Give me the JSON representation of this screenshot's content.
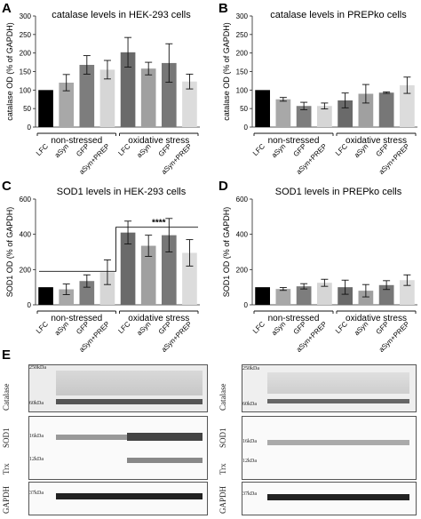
{
  "figure": {
    "panel_labels": [
      "A",
      "B",
      "C",
      "D",
      "E"
    ]
  },
  "colors": {
    "bars": [
      "#000000",
      "#a8a8a8",
      "#7d7d7d",
      "#d6d6d6",
      "#6a6a6a",
      "#a0a0a0",
      "#777777",
      "#dcdcdc"
    ]
  },
  "chart_data": [
    {
      "panel": "A",
      "type": "bar",
      "title": "catalase levels in HEK-293 cells",
      "ylabel": "catalase OD (% of GAPDH)",
      "ylim": [
        0,
        300
      ],
      "yticks": [
        "0",
        "50",
        "100",
        "150",
        "200",
        "250",
        "300"
      ],
      "categories": [
        "LFC",
        "aSyn",
        "GFP",
        "aSyn+PREP",
        "LFC",
        "aSyn",
        "GFP",
        "aSyn+PREP"
      ],
      "values": [
        100,
        120,
        168,
        155,
        202,
        158,
        173,
        123
      ],
      "errors": [
        0,
        22,
        25,
        25,
        40,
        17,
        52,
        20
      ],
      "groups": [
        "non-stressed",
        "oxidative stress"
      ],
      "significance": ""
    },
    {
      "panel": "B",
      "type": "bar",
      "title": "catalase levels in PREPko cells",
      "ylabel": "catalase OD (% of GAPDH)",
      "ylim": [
        0,
        300
      ],
      "yticks": [
        "0",
        "50",
        "100",
        "150",
        "200",
        "250",
        "300"
      ],
      "categories": [
        "LFC",
        "aSyn",
        "GFP",
        "aSyn+PREP",
        "LFC",
        "aSyn",
        "GFP",
        "aSyn+PREP"
      ],
      "values": [
        100,
        75,
        57,
        57,
        72,
        90,
        93,
        113
      ],
      "errors": [
        0,
        5,
        10,
        8,
        20,
        25,
        2,
        22
      ],
      "groups": [
        "non-stressed",
        "oxidative stress"
      ],
      "significance": ""
    },
    {
      "panel": "C",
      "type": "bar",
      "title": "SOD1 levels in HEK-293 cells",
      "ylabel": "SOD1 OD (% of GAPDH)",
      "ylim": [
        0,
        600
      ],
      "yticks": [
        "0",
        "200",
        "400",
        "600"
      ],
      "categories": [
        "LFC",
        "aSyn",
        "GFP",
        "aSyn+PREP",
        "LFC",
        "aSyn",
        "GFP",
        "aSyn+PREP"
      ],
      "values": [
        100,
        88,
        135,
        185,
        410,
        335,
        395,
        295
      ],
      "errors": [
        0,
        30,
        35,
        70,
        65,
        60,
        95,
        75
      ],
      "groups": [
        "non-stressed",
        "oxidative stress"
      ],
      "significance": "****"
    },
    {
      "panel": "D",
      "type": "bar",
      "title": "SOD1 levels in PREPko cells",
      "ylabel": "SOD1 OD (% of GAPDH)",
      "ylim": [
        0,
        600
      ],
      "yticks": [
        "0",
        "200",
        "400",
        "600"
      ],
      "categories": [
        "LFC",
        "aSyn",
        "GFP",
        "aSyn+PREP",
        "LFC",
        "aSyn",
        "GFP",
        "aSyn+PREP"
      ],
      "values": [
        100,
        90,
        105,
        125,
        100,
        80,
        112,
        140
      ],
      "errors": [
        0,
        8,
        15,
        20,
        40,
        35,
        25,
        30
      ],
      "groups": [
        "non-stressed",
        "oxidative stress"
      ],
      "significance": ""
    }
  ],
  "blots": {
    "left": {
      "labels": [
        "Catalase",
        "SOD1",
        "Trx",
        "GAPDH"
      ],
      "markers": [
        "250kDa",
        "60kDa",
        "16kDa",
        "12kDa",
        "37kDa"
      ]
    },
    "right": {
      "labels": [
        "Catalase",
        "SOD1",
        "Trx",
        "GAPDH"
      ],
      "markers": [
        "250kDa",
        "60kDa",
        "16kDa",
        "12kDa",
        "37kDa"
      ]
    }
  }
}
